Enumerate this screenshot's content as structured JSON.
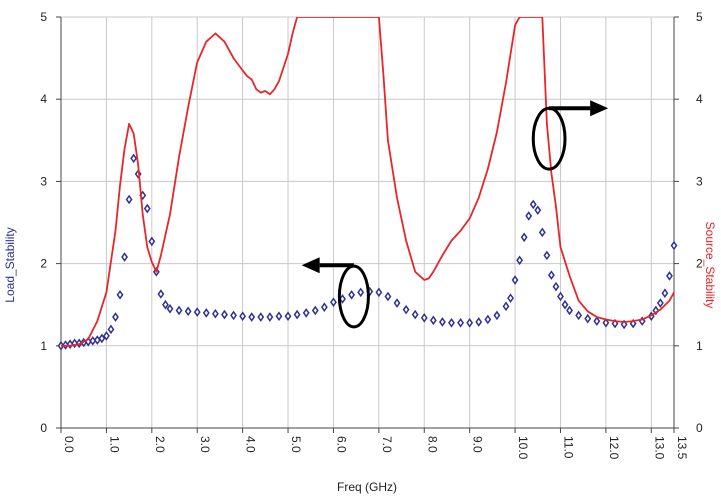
{
  "chart_data": {
    "type": "line",
    "xlabel": "Freq (GHz)",
    "ylabel_left": "Load_Stability",
    "ylabel_right": "Source_Stability",
    "xlim": [
      0,
      13.5
    ],
    "ylim_left": [
      0,
      5
    ],
    "ylim_right": [
      0,
      5
    ],
    "x_ticks": [
      "0.0",
      "1.0",
      "2.0",
      "3.0",
      "4.0",
      "5.0",
      "6.0",
      "7.0",
      "8.0",
      "9.0",
      "10.0",
      "11.0",
      "12.0",
      "13.0",
      "13.5"
    ],
    "y_ticks_left": [
      "0",
      "1",
      "2",
      "3",
      "4",
      "5"
    ],
    "y_ticks_right": [
      "0",
      "1",
      "2",
      "3",
      "4",
      "5"
    ],
    "grid": true,
    "colors": {
      "load": "#2e3192",
      "source": "#e8262a",
      "annotation": "#000000",
      "grid": "#c8c8c8"
    },
    "series": [
      {
        "name": "Load_Stability",
        "axis": "left",
        "marker": "diamond-open",
        "x": [
          0.0,
          0.1,
          0.2,
          0.3,
          0.4,
          0.5,
          0.6,
          0.7,
          0.8,
          0.9,
          1.0,
          1.1,
          1.2,
          1.3,
          1.4,
          1.5,
          1.6,
          1.7,
          1.8,
          1.9,
          2.0,
          2.1,
          2.2,
          2.3,
          2.4,
          2.6,
          2.8,
          3.0,
          3.2,
          3.4,
          3.6,
          3.8,
          4.0,
          4.2,
          4.4,
          4.6,
          4.8,
          5.0,
          5.2,
          5.4,
          5.6,
          5.8,
          6.0,
          6.2,
          6.4,
          6.6,
          6.8,
          7.0,
          7.2,
          7.4,
          7.6,
          7.8,
          8.0,
          8.2,
          8.4,
          8.6,
          8.8,
          9.0,
          9.2,
          9.4,
          9.6,
          9.8,
          9.9,
          10.0,
          10.1,
          10.2,
          10.3,
          10.4,
          10.5,
          10.6,
          10.7,
          10.8,
          10.9,
          11.0,
          11.1,
          11.2,
          11.4,
          11.6,
          11.8,
          12.0,
          12.2,
          12.4,
          12.6,
          12.8,
          13.0,
          13.1,
          13.2,
          13.3,
          13.4,
          13.5
        ],
        "y": [
          1.0,
          1.01,
          1.02,
          1.03,
          1.03,
          1.04,
          1.05,
          1.06,
          1.07,
          1.09,
          1.12,
          1.2,
          1.35,
          1.62,
          2.08,
          2.78,
          3.28,
          3.09,
          2.83,
          2.67,
          2.27,
          1.9,
          1.63,
          1.5,
          1.45,
          1.43,
          1.42,
          1.41,
          1.4,
          1.39,
          1.38,
          1.37,
          1.36,
          1.35,
          1.35,
          1.35,
          1.36,
          1.36,
          1.38,
          1.4,
          1.43,
          1.47,
          1.53,
          1.57,
          1.62,
          1.65,
          1.66,
          1.65,
          1.6,
          1.52,
          1.44,
          1.38,
          1.34,
          1.31,
          1.29,
          1.28,
          1.28,
          1.28,
          1.29,
          1.32,
          1.37,
          1.48,
          1.58,
          1.8,
          2.04,
          2.32,
          2.58,
          2.72,
          2.65,
          2.38,
          2.1,
          1.86,
          1.72,
          1.6,
          1.5,
          1.43,
          1.37,
          1.33,
          1.3,
          1.28,
          1.27,
          1.26,
          1.27,
          1.3,
          1.36,
          1.43,
          1.52,
          1.64,
          1.85,
          2.22
        ]
      },
      {
        "name": "Source_Stability",
        "axis": "right",
        "marker": "none",
        "x": [
          0.0,
          0.2,
          0.4,
          0.6,
          0.8,
          1.0,
          1.2,
          1.3,
          1.4,
          1.5,
          1.6,
          1.7,
          1.8,
          1.9,
          2.0,
          2.1,
          2.2,
          2.4,
          2.6,
          2.8,
          3.0,
          3.2,
          3.4,
          3.6,
          3.8,
          4.0,
          4.1,
          4.2,
          4.3,
          4.4,
          4.5,
          4.6,
          4.7,
          4.8,
          5.0,
          5.1,
          5.2,
          7.0,
          7.1,
          7.2,
          7.4,
          7.6,
          7.8,
          8.0,
          8.1,
          8.2,
          8.4,
          8.6,
          8.8,
          9.0,
          9.2,
          9.4,
          9.6,
          9.8,
          10.0,
          10.1,
          10.2,
          10.6,
          10.7,
          10.8,
          10.9,
          11.0,
          11.2,
          11.4,
          11.6,
          11.8,
          12.0,
          12.2,
          12.4,
          12.6,
          12.8,
          13.0,
          13.2,
          13.4,
          13.5
        ],
        "y": [
          1.0,
          1.0,
          1.02,
          1.08,
          1.3,
          1.65,
          2.4,
          2.95,
          3.4,
          3.7,
          3.58,
          3.2,
          2.6,
          2.2,
          2.02,
          1.9,
          2.1,
          2.6,
          3.3,
          3.9,
          4.45,
          4.7,
          4.8,
          4.7,
          4.5,
          4.35,
          4.28,
          4.24,
          4.12,
          4.08,
          4.1,
          4.06,
          4.12,
          4.22,
          4.55,
          4.8,
          5.0,
          5.0,
          4.3,
          3.5,
          2.8,
          2.28,
          1.9,
          1.8,
          1.82,
          1.9,
          2.1,
          2.28,
          2.4,
          2.55,
          2.8,
          3.15,
          3.6,
          4.2,
          4.9,
          5.0,
          5.0,
          5.0,
          3.7,
          3.1,
          2.7,
          2.2,
          1.85,
          1.55,
          1.42,
          1.35,
          1.32,
          1.3,
          1.29,
          1.3,
          1.32,
          1.37,
          1.44,
          1.55,
          1.65
        ]
      }
    ],
    "annotations": [
      {
        "type": "ellipse",
        "cx": 6.45,
        "cy": 1.6,
        "rx": 0.32,
        "ry": 0.37,
        "target": "Load_Stability"
      },
      {
        "type": "arrow",
        "from": [
          6.45,
          1.98
        ],
        "to": [
          5.3,
          1.98
        ],
        "direction": "left",
        "target_axis": "left"
      },
      {
        "type": "ellipse",
        "cx": 10.75,
        "cy": 3.52,
        "rx": 0.35,
        "ry": 0.37,
        "target": "Source_Stability"
      },
      {
        "type": "arrow",
        "from": [
          10.75,
          3.89
        ],
        "to": [
          12.05,
          3.89
        ],
        "direction": "right",
        "target_axis": "right"
      }
    ]
  }
}
